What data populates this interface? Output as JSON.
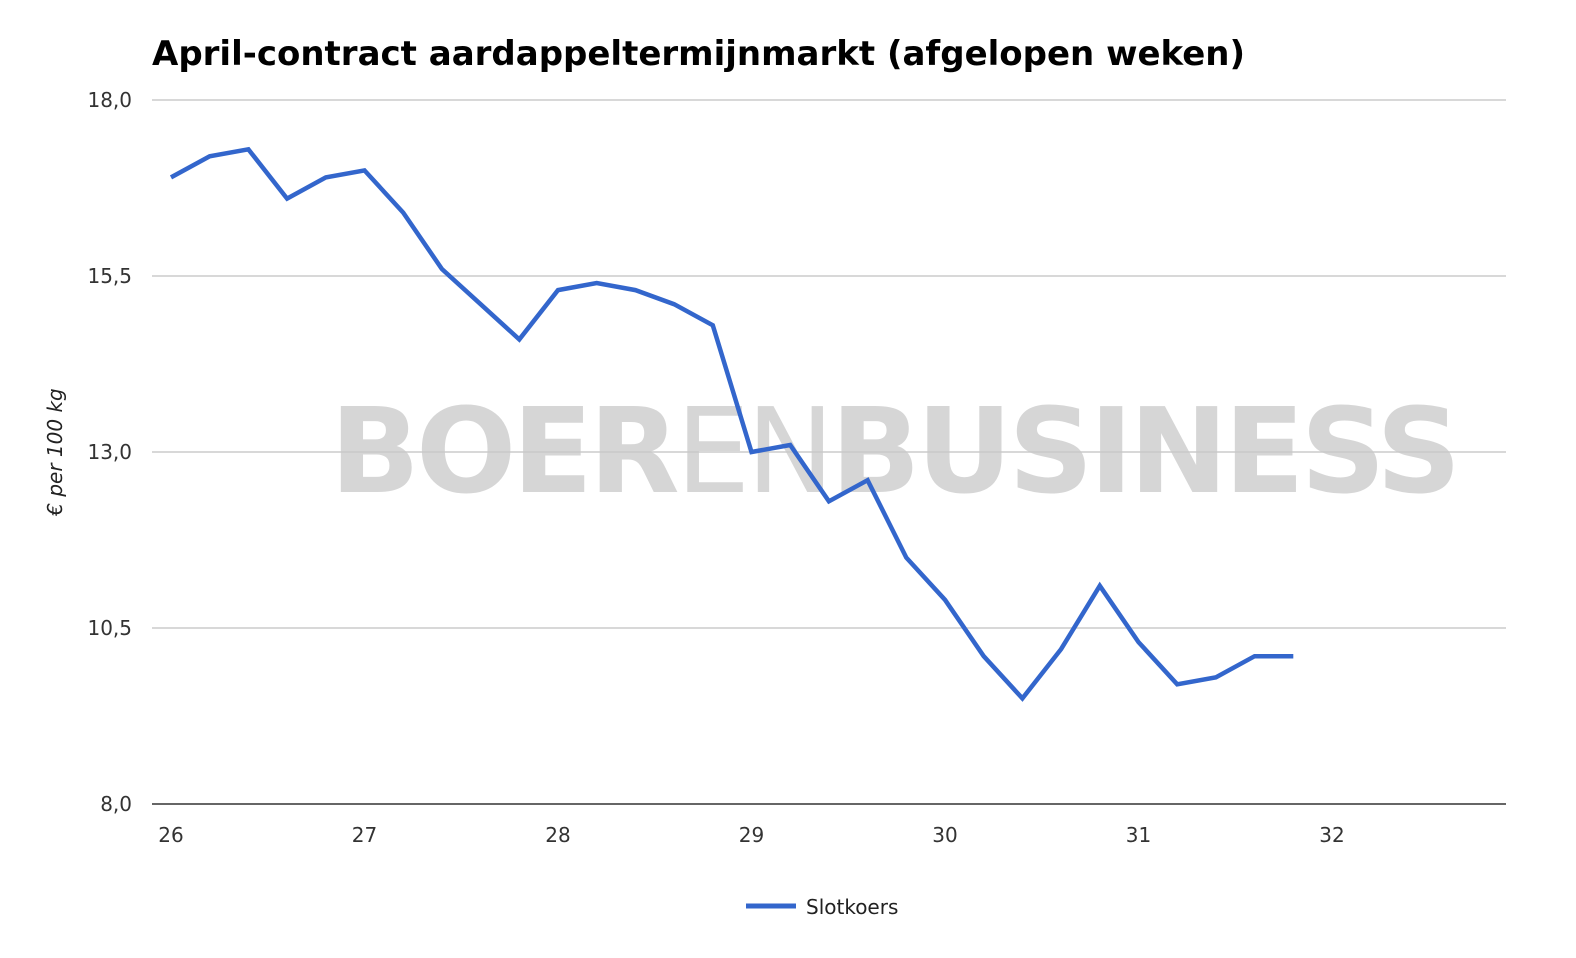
{
  "chart_data": {
    "type": "line",
    "title": "April-contract aardappeltermijnmarkt (afgelopen weken)",
    "ylabel": "€ per 100 kg",
    "xlabel": "",
    "x_ticks": [
      26,
      27,
      28,
      29,
      30,
      31,
      32
    ],
    "y_ticks": [
      "18,0",
      "15,5",
      "13,0",
      "10,5",
      "8,0"
    ],
    "y_tick_values": [
      18.0,
      15.5,
      13.0,
      10.5,
      8.0
    ],
    "xlim": [
      26,
      32.9
    ],
    "ylim": [
      8.0,
      18.0
    ],
    "grid": "horizontal",
    "legend_position": "bottom",
    "series": [
      {
        "name": "Slotkoers",
        "color": "#3366cc",
        "x": [
          26.0,
          26.2,
          26.4,
          26.6,
          26.8,
          27.0,
          27.2,
          27.4,
          27.6,
          27.8,
          28.0,
          28.2,
          28.4,
          28.6,
          28.8,
          29.0,
          29.2,
          29.4,
          29.6,
          29.8,
          30.0,
          30.2,
          30.4,
          30.6,
          30.8,
          31.0,
          31.2,
          31.4,
          31.6,
          31.8
        ],
        "values": [
          16.9,
          17.2,
          17.3,
          16.6,
          16.9,
          17.0,
          16.4,
          15.6,
          15.1,
          14.6,
          15.3,
          15.4,
          15.3,
          15.1,
          14.8,
          13.0,
          13.1,
          12.3,
          12.6,
          11.5,
          10.9,
          10.1,
          9.5,
          10.2,
          11.1,
          10.3,
          9.7,
          9.8,
          10.1,
          10.1
        ]
      }
    ]
  },
  "watermark": {
    "part1": "BOER",
    "part2": "EN",
    "part3": "BUSINESS"
  }
}
